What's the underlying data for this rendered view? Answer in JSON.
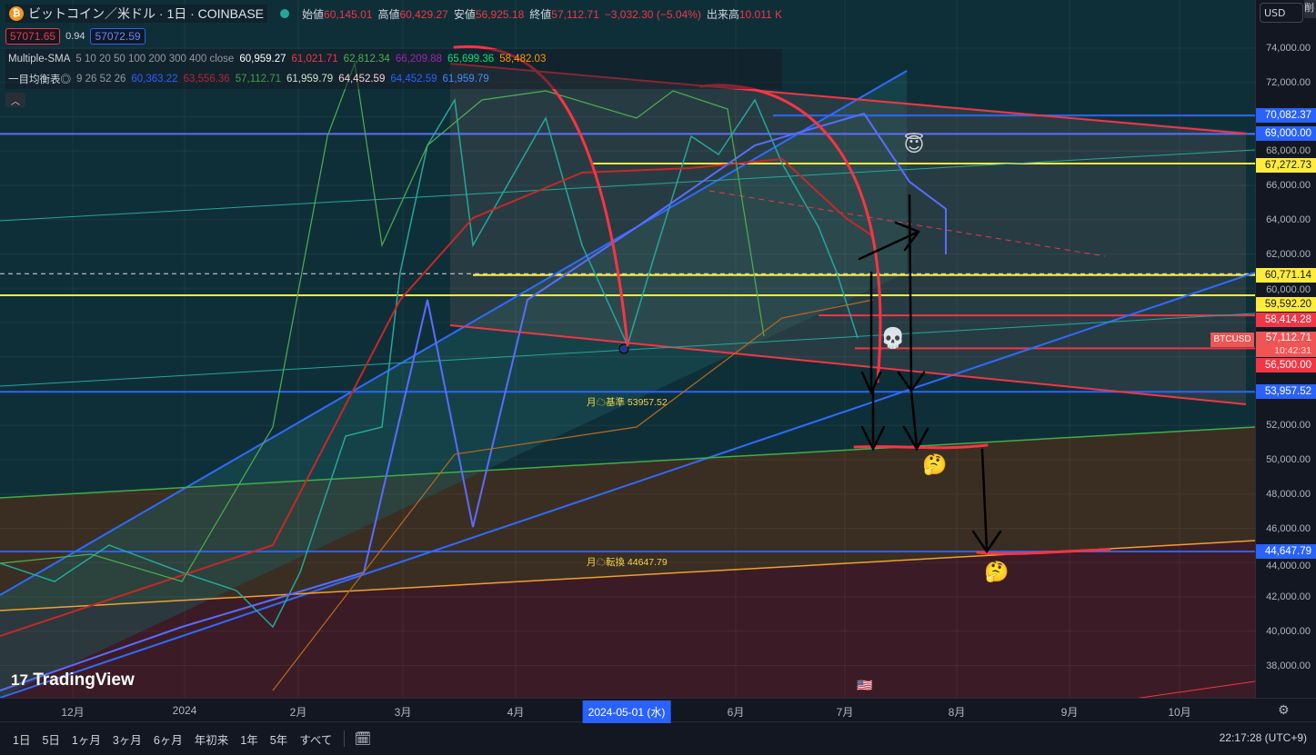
{
  "header": {
    "symbol_title": "ビットコイン／米ドル · 1日 · COINBASE",
    "ohlc": [
      {
        "label": "始値",
        "value": "60,145.01"
      },
      {
        "label": "高値",
        "value": "60,429.27"
      },
      {
        "label": "安値",
        "value": "56,925.18"
      },
      {
        "label": "終値",
        "value": "57,112.71"
      }
    ],
    "change": "−3,032.30 (−5.04%)",
    "volume_label": "出来高",
    "volume": "10.011 K",
    "bid": "57071.65",
    "spread": "0.94",
    "ask": "57072.59"
  },
  "indicators": [
    {
      "name": "Multiple-SMA",
      "params": "5 10 20 50 100 200 300 400 close",
      "values": [
        {
          "v": "60,959.27",
          "color": "#ffffff"
        },
        {
          "v": "61,021.71",
          "color": "#f23645"
        },
        {
          "v": "62,812.34",
          "color": "#4caf50"
        },
        {
          "v": "66,209.88",
          "color": "#9c27b0"
        },
        {
          "v": "65,699.36",
          "color": "#00e676"
        },
        {
          "v": "58,482.03",
          "color": "#ff9800"
        }
      ]
    },
    {
      "name": "一目均衡表◎",
      "params": "9 26 52 26",
      "values": [
        {
          "v": "60,363.22",
          "color": "#2962ff"
        },
        {
          "v": "63,556.36",
          "color": "#b22833"
        },
        {
          "v": "57,112.71",
          "color": "#43a047"
        },
        {
          "v": "61,959.79",
          "color": "#c8e6c9"
        },
        {
          "v": "64,452.59",
          "color": "#ffcdd2"
        },
        {
          "v": "64,452.59",
          "color": "#2962ff"
        },
        {
          "v": "61,959.79",
          "color": "#448aff"
        }
      ]
    }
  ],
  "price_axis": {
    "currency": "USD",
    "delete_label": "削",
    "ticks": [
      "74,000.00",
      "72,000.00",
      "68,000.00",
      "66,000.00",
      "64,000.00",
      "62,000.00",
      "60,000.00",
      "52,000.00",
      "50,000.00",
      "48,000.00",
      "46,000.00",
      "44,000.00",
      "42,000.00",
      "40,000.00",
      "38,000.00"
    ],
    "labels": [
      {
        "text": "70,082.37",
        "bg": "#2962ff",
        "fg": "#ffffff"
      },
      {
        "text": "69,000.00",
        "bg": "#2962ff",
        "fg": "#ffffff"
      },
      {
        "text": "67,272.73",
        "bg": "#ffeb3b",
        "fg": "#131722"
      },
      {
        "text": "60,771.14",
        "bg": "#ffeb3b",
        "fg": "#131722"
      },
      {
        "text": "59,592.20",
        "bg": "#ffeb3b",
        "fg": "#131722"
      },
      {
        "text": "58,414.28",
        "bg": "#f23645",
        "fg": "#ffffff"
      },
      {
        "text": "57,112.71",
        "bg": "#f05454",
        "fg": "#ffffff"
      },
      {
        "text": "56,500.00",
        "bg": "#f23645",
        "fg": "#ffffff"
      },
      {
        "text": "53,957.52",
        "bg": "#2962ff",
        "fg": "#ffffff"
      },
      {
        "text": "44,647.79",
        "bg": "#2962ff",
        "fg": "#ffffff"
      }
    ],
    "countdown": "10:42:31",
    "symbol_tag": "BTCUSD"
  },
  "annotations": {
    "kijun": "月☁基準 53957.52",
    "tenkan": "月☁転換 44647.79"
  },
  "time_axis": {
    "labels": [
      "12月",
      "2024",
      "2月",
      "3月",
      "4月",
      "6月",
      "7月",
      "8月",
      "9月",
      "10月"
    ],
    "crosshair_date": "2024-05-01 (水)"
  },
  "bottom_bar": {
    "ranges": [
      "1日",
      "5日",
      "1ヶ月",
      "3ヶ月",
      "6ヶ月",
      "年初来",
      "1年",
      "5年",
      "すべて"
    ],
    "clock": "22:17:28 (UTC+9)"
  },
  "logo": "TradingView",
  "emojis": {
    "angel": "😇",
    "skull": "💀",
    "thinking": "🤔",
    "flag": "🇺🇸"
  },
  "colors": {
    "up": "#26a69a",
    "down": "#f23645",
    "blue": "#2962ff",
    "yellow": "#ffeb3b",
    "drawing_red": "#f23645"
  }
}
